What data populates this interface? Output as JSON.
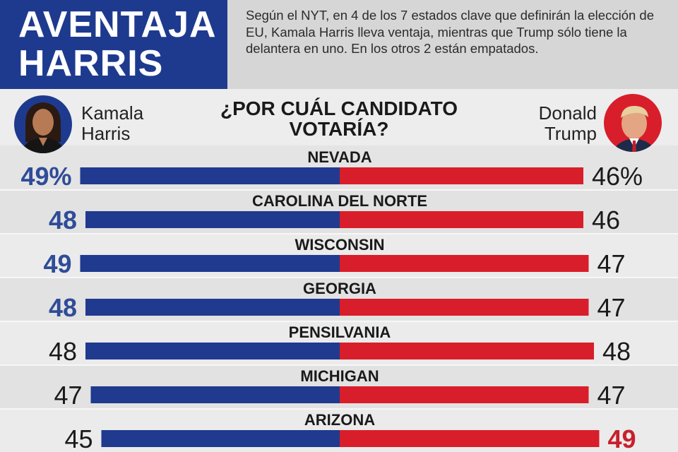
{
  "header": {
    "title_line1": "AVENTAJA",
    "title_line2": "HARRIS",
    "intro": "Según el NYT, en 4 de los 7 estados clave que definirán la elección de EU, Kamala Harris lleva ventaja, mientras que Trump sólo tiene la delantera en uno. En los otros 2 están empatados."
  },
  "candidates": {
    "left": {
      "name_line1": "Kamala",
      "name_line2": "Harris",
      "photo": "kamala-harris-portrait"
    },
    "right": {
      "name_line1": "Donald",
      "name_line2": "Trump",
      "photo": "donald-trump-portrait"
    }
  },
  "question": "¿POR CUÁL CANDIDATO VOTARÍA?",
  "colors": {
    "harris": "#1f3a8f",
    "trump": "#d81e2a",
    "leader_harris_text": "#2f4c98",
    "leader_trump_text": "#c8202b",
    "neutral_text": "#1a1a1a",
    "title_bg": "#1e3a8e"
  },
  "chart_data": {
    "type": "bar",
    "subtype": "diverging",
    "title": "¿POR CUÁL CANDIDATO VOTARÍA?",
    "categories": [
      "NEVADA",
      "CAROLINA DEL NORTE",
      "WISCONSIN",
      "GEORGIA",
      "PENSILVANIA",
      "MICHIGAN",
      "ARIZONA"
    ],
    "series": [
      {
        "name": "Kamala Harris",
        "values": [
          49,
          48,
          49,
          48,
          48,
          47,
          45
        ]
      },
      {
        "name": "Donald Trump",
        "values": [
          46,
          46,
          47,
          47,
          48,
          47,
          49
        ]
      }
    ],
    "labels_left": [
      "49%",
      "48",
      "49",
      "48",
      "48",
      "47",
      "45"
    ],
    "labels_right": [
      "46%",
      "46",
      "47",
      "47",
      "48",
      "47",
      "49"
    ],
    "leader": [
      "harris",
      "harris",
      "harris",
      "harris",
      "tie",
      "tie",
      "trump"
    ]
  }
}
